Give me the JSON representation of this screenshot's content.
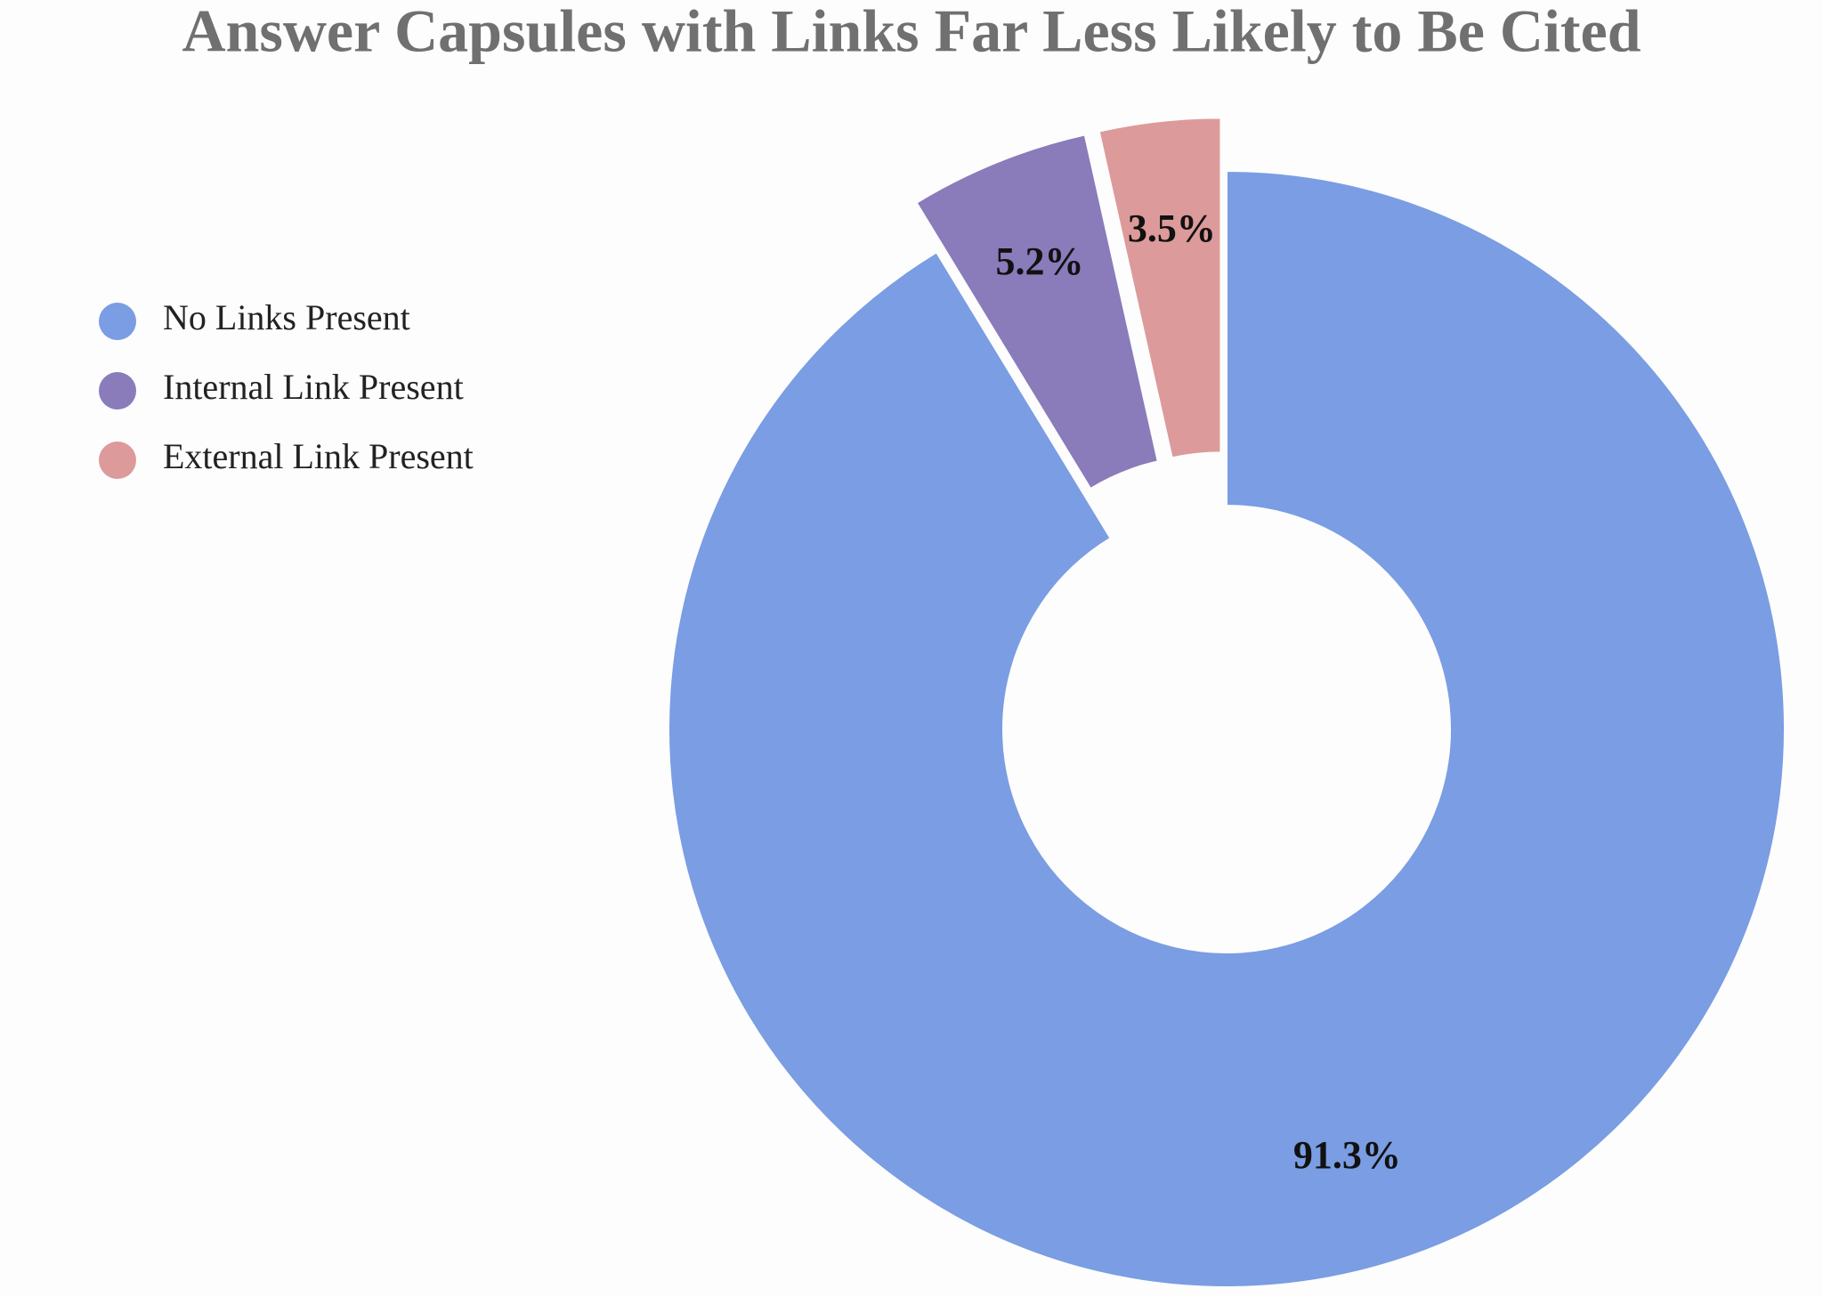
{
  "chart_data": {
    "type": "donut",
    "title": "Answer Capsules with Links Far Less Likely to Be Cited",
    "labels": [
      "No Links Present",
      "Internal Link Present",
      "External Link Present"
    ],
    "values": [
      91.3,
      5.2,
      3.5
    ],
    "value_labels": [
      "91.3%",
      "5.2%",
      "3.5%"
    ],
    "colors": [
      "#7a9de3",
      "#8a7bbb",
      "#dd9a9a"
    ],
    "legend": "left"
  }
}
